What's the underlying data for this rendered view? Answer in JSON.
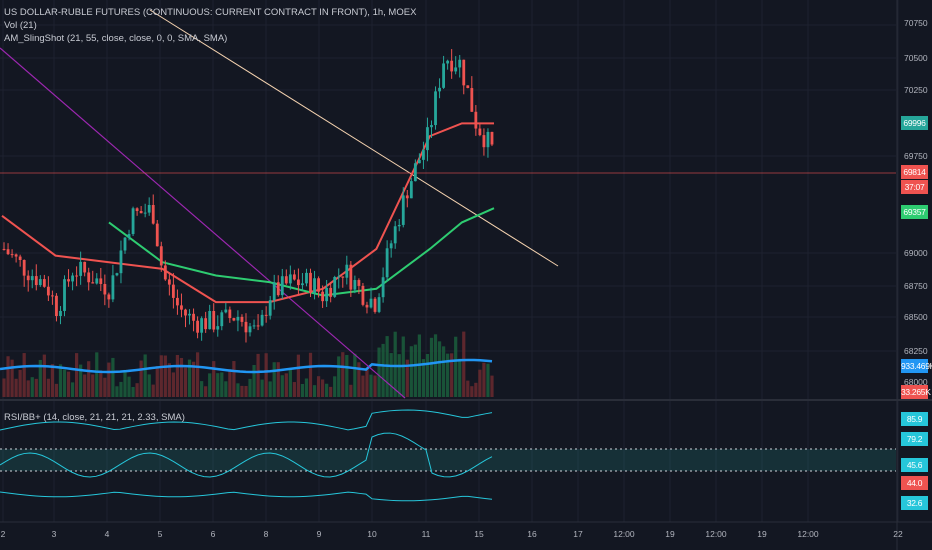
{
  "header": {
    "title": "US DOLLAR-RUBLE FUTURES (CONTINUOUS: CURRENT CONTRACT IN FRONT), 1h, MOEX",
    "vol_label": "Vol (21)",
    "slingshot_label": "AM_SlingShot (21, 55, close, close, 0, 0, SMA, SMA)",
    "rsi_label": "RSI/BB+ (14, close, 21, 21, 21, 2.33, SMA)"
  },
  "price_axis": {
    "ticks": [
      "70750",
      "70500",
      "70250",
      "69750",
      "69000",
      "68750",
      "68500",
      "68250",
      "68000"
    ],
    "tags": {
      "upper_band": "69996",
      "last_price": "69814",
      "countdown": "37:07",
      "lower_band": "69357",
      "volume_ma": "933.469K",
      "volume": "33.265K"
    }
  },
  "rsi_axis": {
    "tags": {
      "upper": "85.9",
      "mid_high": "79.2",
      "rsi": "45.6",
      "lower": "44.0",
      "bottom": "32.6"
    }
  },
  "time_axis": {
    "labels": [
      "2",
      "3",
      "4",
      "5",
      "6",
      "8",
      "9",
      "10",
      "11",
      "15",
      "16",
      "17",
      "12:00",
      "19",
      "12:00",
      "19",
      "12:00",
      "22"
    ]
  },
  "colors": {
    "background": "#131722",
    "up": "#26a69a",
    "down": "#ef5350",
    "volume_ma": "#2196f3",
    "fast_ma": "#ef5350",
    "slow_ma": "#2ecc71",
    "trendline_purple": "#9c27b0",
    "trendline_tan": "#f5d3b0",
    "rsi_band": "#26c6da"
  },
  "chart_data": {
    "type": "candlestick",
    "symbol": "US DOLLAR-RUBLE FUTURES",
    "timeframe": "1h",
    "ylim": [
      67950,
      70850
    ],
    "last_price": 69814,
    "close_path": [
      {
        "t": 0,
        "c": 69050
      },
      {
        "t": 0.4,
        "c": 68900
      },
      {
        "t": 0.8,
        "c": 68780
      },
      {
        "t": 1.0,
        "c": 68600
      },
      {
        "t": 1.3,
        "c": 68900
      },
      {
        "t": 1.6,
        "c": 68850
      },
      {
        "t": 2.0,
        "c": 68750
      },
      {
        "t": 2.4,
        "c": 69300
      },
      {
        "t": 2.8,
        "c": 69350
      },
      {
        "t": 3.0,
        "c": 68850
      },
      {
        "t": 3.3,
        "c": 68600
      },
      {
        "t": 3.6,
        "c": 68500
      },
      {
        "t": 4.0,
        "c": 68500
      },
      {
        "t": 4.4,
        "c": 68550
      },
      {
        "t": 4.8,
        "c": 68400
      },
      {
        "t": 5.0,
        "c": 68700
      },
      {
        "t": 5.4,
        "c": 68800
      },
      {
        "t": 5.8,
        "c": 68800
      },
      {
        "t": 6.0,
        "c": 68700
      },
      {
        "t": 6.4,
        "c": 68900
      },
      {
        "t": 6.8,
        "c": 68700
      },
      {
        "t": 7.0,
        "c": 68650
      },
      {
        "t": 7.3,
        "c": 69100
      },
      {
        "t": 7.6,
        "c": 69500
      },
      {
        "t": 8.0,
        "c": 69900
      },
      {
        "t": 8.3,
        "c": 70500
      },
      {
        "t": 8.6,
        "c": 70450
      },
      {
        "t": 8.9,
        "c": 70000
      },
      {
        "t": 9.2,
        "c": 69800
      }
    ],
    "fast_ma": [
      {
        "t": 0,
        "v": 69300
      },
      {
        "t": 1,
        "v": 69000
      },
      {
        "t": 2,
        "v": 68950
      },
      {
        "t": 3,
        "v": 68900
      },
      {
        "t": 4,
        "v": 68650
      },
      {
        "t": 5,
        "v": 68650
      },
      {
        "t": 6,
        "v": 68750
      },
      {
        "t": 7,
        "v": 69050
      },
      {
        "t": 8,
        "v": 69900
      },
      {
        "t": 8.6,
        "v": 69996
      },
      {
        "t": 9.2,
        "v": 69996
      }
    ],
    "slow_ma": [
      {
        "t": 2,
        "v": 69250
      },
      {
        "t": 3,
        "v": 68950
      },
      {
        "t": 4,
        "v": 68850
      },
      {
        "t": 5,
        "v": 68800
      },
      {
        "t": 6,
        "v": 68700
      },
      {
        "t": 7,
        "v": 68750
      },
      {
        "t": 8,
        "v": 69050
      },
      {
        "t": 8.6,
        "v": 69250
      },
      {
        "t": 9.2,
        "v": 69357
      }
    ],
    "volume_ma_level": "933.469K",
    "last_volume": "33.265K",
    "rsi": {
      "upper": 85.9,
      "mid_high": 79.2,
      "value": 45.6,
      "lower": 44.0,
      "bottom": 32.6
    }
  }
}
